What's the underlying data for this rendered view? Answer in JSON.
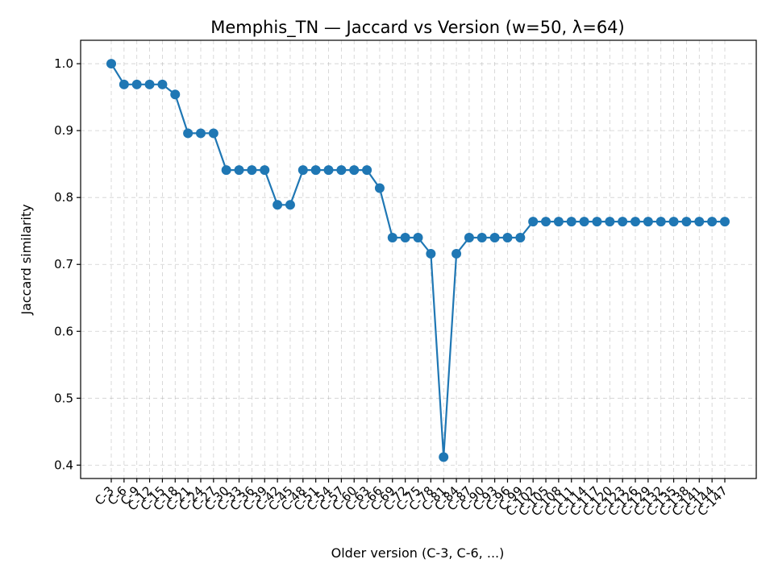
{
  "chart_data": {
    "type": "line",
    "title": "Memphis_TN — Jaccard vs Version (w=50, λ=64)",
    "xlabel": "Older version (C-3, C-6, ...)",
    "ylabel": "Jaccard similarity",
    "ylim": [
      0.38,
      1.035
    ],
    "yticks": [
      "0.4",
      "0.5",
      "0.6",
      "0.7",
      "0.8",
      "0.9",
      "1.0"
    ],
    "grid": true,
    "color": "#1f77b4",
    "categories": [
      "C-3",
      "C-6",
      "C-9",
      "C-12",
      "C-15",
      "C-18",
      "C-21",
      "C-24",
      "C-27",
      "C-30",
      "C-33",
      "C-36",
      "C-39",
      "C-42",
      "C-45",
      "C-48",
      "C-51",
      "C-54",
      "C-57",
      "C-60",
      "C-63",
      "C-66",
      "C-69",
      "C-72",
      "C-75",
      "C-78",
      "C-81",
      "C-84",
      "C-87",
      "C-90",
      "C-93",
      "C-96",
      "C-99",
      "C-102",
      "C-105",
      "C-108",
      "C-111",
      "C-114",
      "C-117",
      "C-120",
      "C-123",
      "C-126",
      "C-129",
      "C-132",
      "C-135",
      "C-138",
      "C-141",
      "C-144",
      "C-147"
    ],
    "values": [
      1.0,
      0.969,
      0.969,
      0.969,
      0.969,
      0.954,
      0.896,
      0.896,
      0.896,
      0.841,
      0.841,
      0.841,
      0.841,
      0.789,
      0.789,
      0.841,
      0.841,
      0.841,
      0.841,
      0.841,
      0.841,
      0.814,
      0.74,
      0.74,
      0.74,
      0.716,
      0.412,
      0.716,
      0.74,
      0.74,
      0.74,
      0.74,
      0.74,
      0.764,
      0.764,
      0.764,
      0.764,
      0.764,
      0.764,
      0.764,
      0.764,
      0.764,
      0.764,
      0.764,
      0.764,
      0.764,
      0.764,
      0.764,
      0.764
    ]
  }
}
